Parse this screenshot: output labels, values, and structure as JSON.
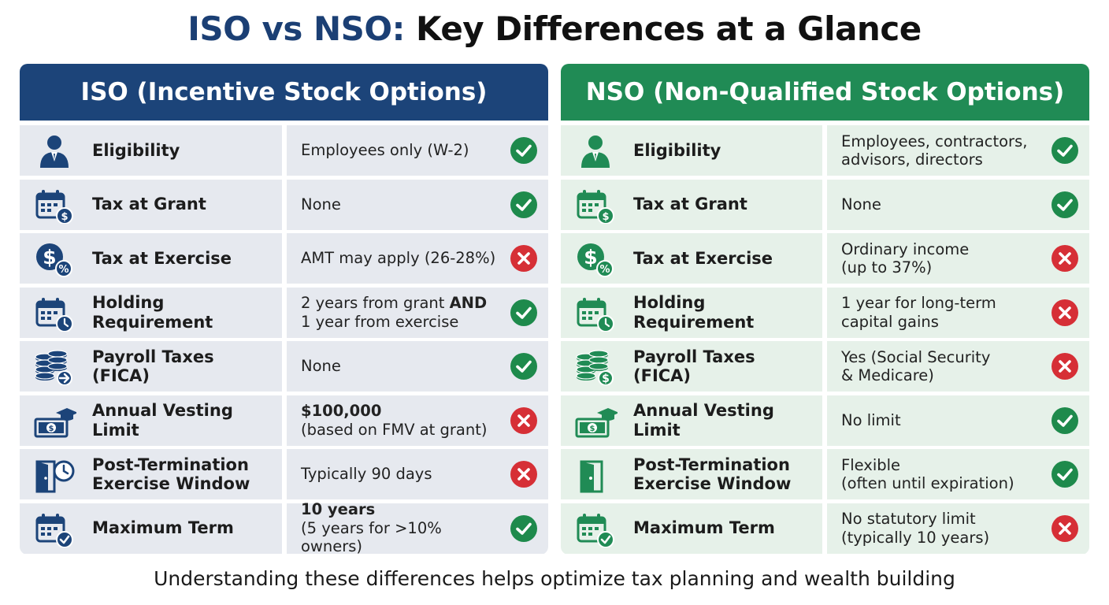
{
  "title": {
    "part1": "ISO vs NSO:",
    "part2": "Key Differences at a Glance"
  },
  "colors": {
    "iso_accent": "#1c4479",
    "nso_accent": "#208b55",
    "check": "#1e8a4c",
    "cross": "#d62f36"
  },
  "iso": {
    "header": "ISO (Incentive Stock Options)",
    "rows": [
      {
        "icon": "person-icon",
        "label": "Eligibility",
        "value": "Employees only (W-2)",
        "status": "check"
      },
      {
        "icon": "calendar-dollar-icon",
        "label": "Tax at Grant",
        "value": "None",
        "status": "check"
      },
      {
        "icon": "dollar-percent-icon",
        "label": "Tax at Exercise",
        "value": "AMT may apply (26-28%)",
        "status": "cross"
      },
      {
        "icon": "calendar-clock-icon",
        "label": "Holding Requirement",
        "value_a": "2 years from grant ",
        "value_bold": "AND",
        "value_b": "1 year from exercise",
        "status": "check"
      },
      {
        "icon": "coins-arrow-icon",
        "label": "Payroll Taxes (FICA)",
        "value": "None",
        "status": "check"
      },
      {
        "icon": "cash-graduation-icon",
        "label": "Annual Vesting Limit",
        "value_bold": "$100,000",
        "value_b": "(based on FMV at grant)",
        "status": "cross"
      },
      {
        "icon": "door-clock-icon",
        "label": "Post-Termination Exercise Window",
        "value": "Typically 90 days",
        "status": "cross"
      },
      {
        "icon": "calendar-check-icon",
        "label": "Maximum Term",
        "value_bold": "10 years",
        "value_b": "(5 years for >10% owners)",
        "status": "check"
      }
    ]
  },
  "nso": {
    "header": "NSO (Non-Qualified Stock Options)",
    "rows": [
      {
        "icon": "person-icon",
        "label": "Eligibility",
        "value": "Employees, contractors,\nadvisors, directors",
        "status": "check"
      },
      {
        "icon": "calendar-dollar-icon",
        "label": "Tax at Grant",
        "value": "None",
        "status": "check"
      },
      {
        "icon": "dollar-percent-icon",
        "label": "Tax at Exercise",
        "value": "Ordinary income\n(up to 37%)",
        "status": "cross"
      },
      {
        "icon": "calendar-clock-icon",
        "label": "Holding Requirement",
        "value": "1 year for long-term\ncapital gains",
        "status": "cross"
      },
      {
        "icon": "coins-dollar-icon",
        "label": "Payroll Taxes (FICA)",
        "value": "Yes (Social Security\n& Medicare)",
        "status": "cross"
      },
      {
        "icon": "cash-graduation-icon",
        "label": "Annual Vesting Limit",
        "value": "No limit",
        "status": "check"
      },
      {
        "icon": "door-icon",
        "label": "Post-Termination Exercise Window",
        "value": "Flexible\n(often until expiration)",
        "status": "check"
      },
      {
        "icon": "calendar-check-icon",
        "label": "Maximum Term",
        "value": "No statutory limit\n(typically 10 years)",
        "status": "cross"
      }
    ]
  },
  "footer": "Understanding these differences helps optimize tax planning and wealth building"
}
